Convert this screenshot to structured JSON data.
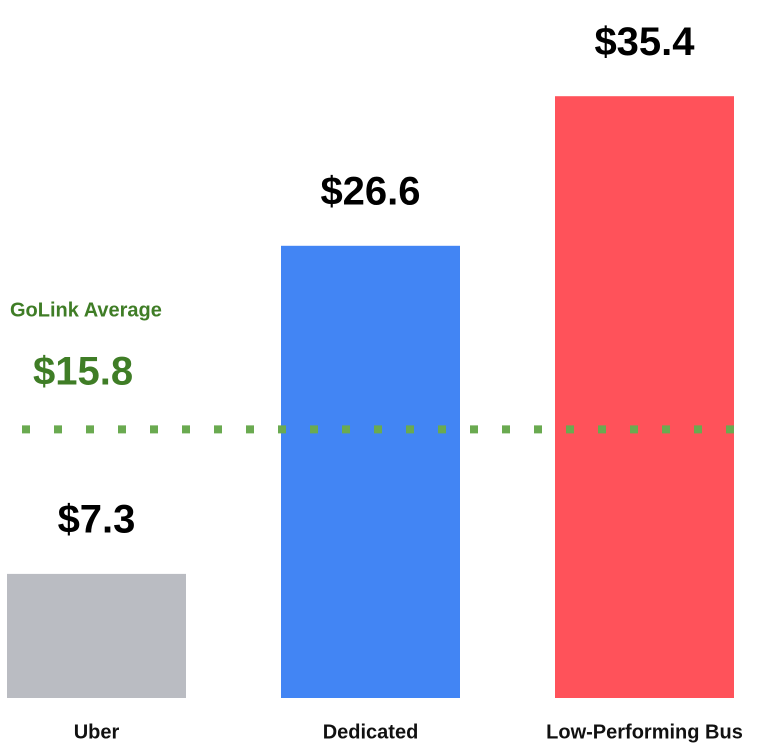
{
  "chart_data": {
    "type": "bar",
    "categories": [
      "Uber",
      "Dedicated",
      "Low-Performing Bus"
    ],
    "values": [
      7.3,
      26.6,
      35.4
    ],
    "value_labels": [
      "$7.3",
      "$26.6",
      "$35.4"
    ],
    "colors": [
      "#babcc2",
      "#4285f4",
      "#ff525a"
    ],
    "ylim": [
      0,
      40
    ],
    "reference_line": {
      "label": "GoLink Average",
      "value": 15.8,
      "value_label": "$15.8",
      "color": "#6aaa50",
      "label_color": "#3f7d26"
    }
  }
}
